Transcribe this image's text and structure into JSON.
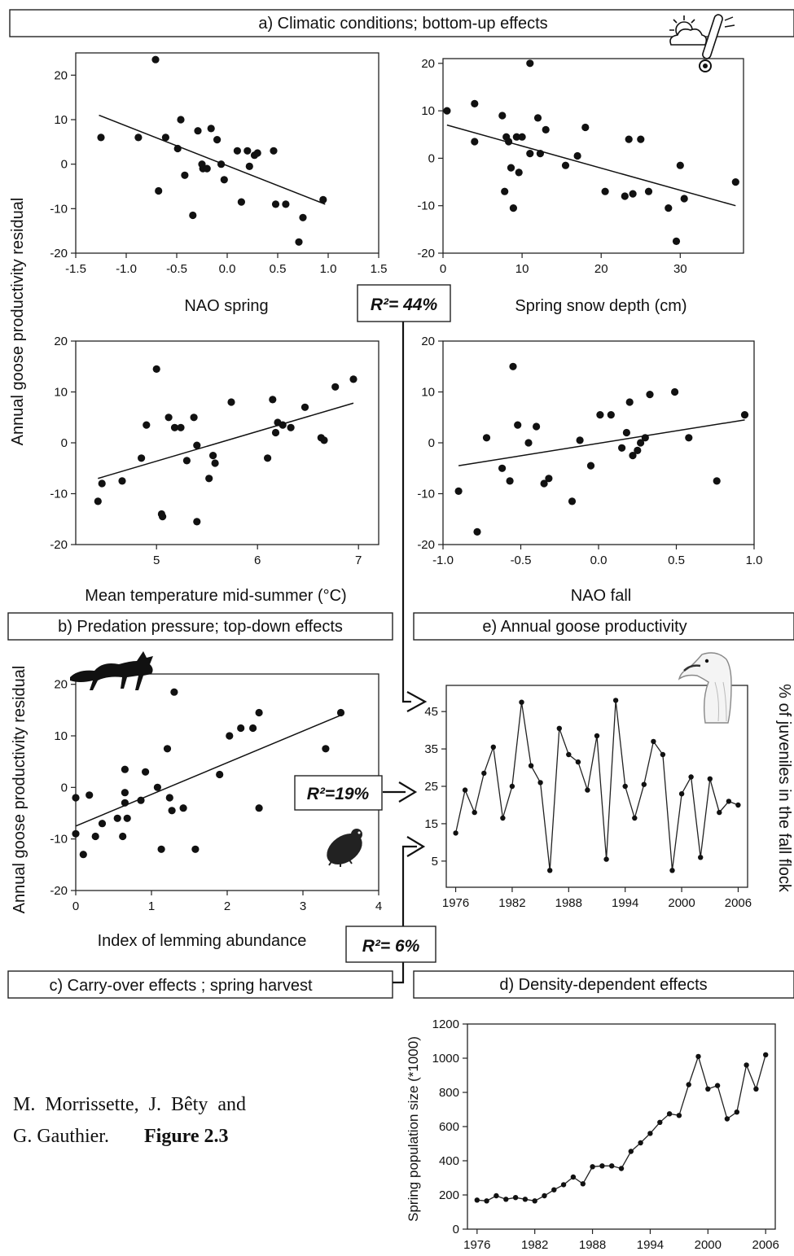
{
  "sections": {
    "a": "a) Climatic conditions; bottom-up effects",
    "b": "b) Predation pressure; top-down effects",
    "c": "c) Carry-over effects ; spring harvest",
    "d": "d) Density-dependent effects",
    "e": "e) Annual goose productivity"
  },
  "r2": {
    "climate": "R²= 44%",
    "predation": "R²=19%",
    "carryover": "R²= 6%"
  },
  "y_labels": {
    "top": "Annual goose productivity residual",
    "predation": "Annual goose productivity residual",
    "productivity": "% of juveniles in the fall flock",
    "density": "Spring population size (*1000)"
  },
  "caption": {
    "authors_line1": "M.  Morrissette,  J.  Bêty  and",
    "authors_line2": "G. Gauthier.",
    "figure": "Figure 2.3"
  },
  "icons": {
    "weather": "weather-thermometer-icon",
    "fox": "arctic-fox-icon",
    "lemming": "lemming-icon",
    "goose": "snow-goose-head-icon"
  },
  "chart_data": [
    {
      "id": "nao_spring",
      "type": "scatter",
      "xlabel": "NAO spring",
      "ylabel": "Annual goose productivity residual",
      "xlim": [
        -1.5,
        1.5
      ],
      "ylim": [
        -20,
        25
      ],
      "xticks": [
        -1.5,
        -1.0,
        -0.5,
        0.0,
        0.5,
        1.0,
        1.5
      ],
      "xticklabels": [
        "-1.5",
        "-1.0",
        "-0.5",
        "0.0",
        "0.5",
        "1.0",
        "1.5"
      ],
      "yticks": [
        -20,
        -10,
        0,
        10,
        20
      ],
      "yticklabels": [
        "-20",
        "-10",
        "0",
        "10",
        "20"
      ],
      "x": [
        -1.25,
        -0.88,
        -0.71,
        -0.68,
        -0.61,
        -0.49,
        -0.46,
        -0.42,
        -0.34,
        -0.29,
        -0.25,
        -0.24,
        -0.2,
        -0.16,
        -0.1,
        -0.06,
        -0.03,
        0.1,
        0.14,
        0.2,
        0.22,
        0.27,
        0.3,
        0.46,
        0.48,
        0.58,
        0.71,
        0.75,
        0.95
      ],
      "y": [
        6,
        6,
        23.5,
        -6,
        6,
        3.5,
        10,
        -2.5,
        -11.5,
        7.5,
        0,
        -1,
        -1,
        8,
        5.5,
        0,
        -3.5,
        3,
        -8.5,
        3,
        -0.5,
        2,
        2.5,
        3,
        -9,
        -9,
        -17.5,
        -12,
        -8
      ],
      "fit": {
        "x": [
          -1.27,
          0.97
        ],
        "y": [
          11,
          -9
        ]
      }
    },
    {
      "id": "snow_depth",
      "type": "scatter",
      "xlabel": "Spring snow depth (cm)",
      "ylabel": "",
      "xlim": [
        0,
        38
      ],
      "ylim": [
        -20,
        21
      ],
      "xticks": [
        0,
        10,
        20,
        30
      ],
      "xticklabels": [
        "0",
        "10",
        "20",
        "30"
      ],
      "yticks": [
        -20,
        -10,
        0,
        10,
        20
      ],
      "yticklabels": [
        "-20",
        "-10",
        "0",
        "10",
        "20"
      ],
      "x": [
        0.5,
        4,
        4,
        7.5,
        7.8,
        8,
        8.3,
        8.6,
        8.9,
        9.3,
        9.6,
        10,
        11,
        11,
        12,
        12.3,
        13,
        15.5,
        17,
        18,
        20.5,
        23,
        23.5,
        24,
        25,
        26,
        28.5,
        29.5,
        30,
        30.5,
        37
      ],
      "y": [
        10,
        11.5,
        3.5,
        9,
        -7,
        4.5,
        3.5,
        -2,
        -10.5,
        4.5,
        -3,
        4.5,
        20,
        1,
        8.5,
        1,
        6,
        -1.5,
        0.5,
        6.5,
        -7,
        -8,
        4,
        -7.5,
        4,
        -7,
        -10.5,
        -17.5,
        -1.5,
        -8.5,
        -5
      ],
      "fit": {
        "x": [
          0.5,
          37
        ],
        "y": [
          7,
          -10
        ]
      }
    },
    {
      "id": "temperature",
      "type": "scatter",
      "xlabel": "Mean temperature mid-summer (°C)",
      "ylabel": "",
      "xlim": [
        4.2,
        7.2
      ],
      "ylim": [
        -20,
        20
      ],
      "xticks": [
        5,
        6,
        7
      ],
      "xticklabels": [
        "5",
        "6",
        "7"
      ],
      "yticks": [
        -20,
        -10,
        0,
        10,
        20
      ],
      "yticklabels": [
        "-20",
        "-10",
        "0",
        "10",
        "20"
      ],
      "x": [
        4.42,
        4.46,
        4.66,
        4.85,
        4.9,
        5.0,
        5.05,
        5.06,
        5.12,
        5.18,
        5.24,
        5.3,
        5.37,
        5.4,
        5.4,
        5.52,
        5.56,
        5.58,
        5.74,
        6.1,
        6.15,
        6.18,
        6.2,
        6.25,
        6.33,
        6.47,
        6.63,
        6.66,
        6.77,
        6.95
      ],
      "y": [
        -11.5,
        -8,
        -7.5,
        -3,
        3.5,
        14.5,
        -14,
        -14.5,
        5,
        3,
        3,
        -3.5,
        5,
        -15.5,
        -0.5,
        -7,
        -2.5,
        -4,
        8,
        -3,
        8.5,
        2,
        4,
        3.5,
        3,
        7,
        1,
        0.5,
        11,
        12.5
      ],
      "fit": {
        "x": [
          4.42,
          6.95
        ],
        "y": [
          -7,
          7.8
        ]
      }
    },
    {
      "id": "nao_fall",
      "type": "scatter",
      "xlabel": "NAO fall",
      "ylabel": "",
      "xlim": [
        -1.0,
        1.0
      ],
      "ylim": [
        -20,
        20
      ],
      "xticks": [
        -1.0,
        -0.5,
        0.0,
        0.5,
        1.0
      ],
      "xticklabels": [
        "-1.0",
        "-0.5",
        "0.0",
        "0.5",
        "1.0"
      ],
      "yticks": [
        -20,
        -10,
        0,
        10,
        20
      ],
      "yticklabels": [
        "-20",
        "-10",
        "0",
        "10",
        "20"
      ],
      "x": [
        -0.9,
        -0.78,
        -0.72,
        -0.62,
        -0.57,
        -0.55,
        -0.52,
        -0.45,
        -0.4,
        -0.35,
        -0.32,
        -0.17,
        -0.12,
        -0.05,
        0.01,
        0.08,
        0.15,
        0.18,
        0.2,
        0.22,
        0.25,
        0.27,
        0.3,
        0.33,
        0.49,
        0.58,
        0.76,
        0.94
      ],
      "y": [
        -9.5,
        -17.5,
        1,
        -5,
        -7.5,
        15,
        3.5,
        0,
        3.2,
        -8,
        -7,
        -11.5,
        0.5,
        -4.5,
        5.5,
        5.5,
        -1,
        2,
        8,
        -2.5,
        -1.5,
        0,
        1,
        9.5,
        10,
        1,
        -7.5,
        5.5
      ],
      "fit": {
        "x": [
          -0.9,
          0.94
        ],
        "y": [
          -4.5,
          4.5
        ]
      }
    },
    {
      "id": "lemming",
      "type": "scatter",
      "xlabel": "Index of lemming abundance",
      "ylabel": "Annual goose productivity residual",
      "xlim": [
        0,
        4
      ],
      "ylim": [
        -20,
        22
      ],
      "xticks": [
        0,
        1,
        2,
        3,
        4
      ],
      "xticklabels": [
        "0",
        "1",
        "2",
        "3",
        "4"
      ],
      "yticks": [
        -20,
        -10,
        0,
        10,
        20
      ],
      "yticklabels": [
        "-20",
        "-10",
        "0",
        "10",
        "20"
      ],
      "x": [
        0.0,
        0.0,
        0.1,
        0.18,
        0.26,
        0.35,
        0.55,
        0.62,
        0.65,
        0.65,
        0.65,
        0.68,
        0.86,
        0.92,
        1.08,
        1.13,
        1.21,
        1.24,
        1.27,
        1.3,
        1.42,
        1.58,
        1.9,
        2.03,
        2.18,
        2.34,
        2.42,
        2.42,
        3.3,
        3.5
      ],
      "y": [
        -2,
        -9,
        -13,
        -1.5,
        -9.5,
        -7,
        -6,
        -9.5,
        -3,
        -1,
        3.5,
        -6,
        -2.5,
        3,
        0,
        -12,
        7.5,
        -2,
        -4.5,
        18.5,
        -4,
        -12,
        2.5,
        10,
        11.5,
        11.5,
        14.5,
        -4,
        7.5,
        14.5
      ],
      "fit": {
        "x": [
          0.0,
          3.5
        ],
        "y": [
          -7.5,
          14
        ]
      }
    },
    {
      "id": "productivity",
      "type": "line",
      "xlabel": "",
      "ylabel": "% of juveniles in the fall flock",
      "xlim": [
        1975,
        2007
      ],
      "ylim": [
        -2,
        52
      ],
      "xticks": [
        1976,
        1982,
        1988,
        1994,
        2000,
        2006
      ],
      "xticklabels": [
        "1976",
        "1982",
        "1988",
        "1994",
        "2000",
        "2006"
      ],
      "yticks": [
        5,
        15,
        25,
        35,
        45
      ],
      "yticklabels": [
        "5",
        "15",
        "25",
        "35",
        "45"
      ],
      "x": [
        1976,
        1977,
        1978,
        1979,
        1980,
        1981,
        1982,
        1983,
        1984,
        1985,
        1986,
        1987,
        1988,
        1989,
        1990,
        1991,
        1992,
        1993,
        1994,
        1995,
        1996,
        1997,
        1998,
        1999,
        2000,
        2001,
        2002,
        2003,
        2004,
        2005,
        2006
      ],
      "y": [
        12.5,
        24,
        18,
        28.5,
        35.5,
        16.5,
        25,
        47.5,
        30.5,
        26,
        2.5,
        40.5,
        33.5,
        31.5,
        24,
        38.5,
        5.5,
        48,
        25,
        16.5,
        25.5,
        37,
        33.5,
        2.5,
        23,
        27.5,
        6,
        27,
        18,
        21,
        20
      ]
    },
    {
      "id": "density",
      "type": "line",
      "xlabel": "",
      "ylabel": "Spring population size (*1000)",
      "xlim": [
        1975,
        2007
      ],
      "ylim": [
        0,
        1200
      ],
      "xticks": [
        1976,
        1982,
        1988,
        1994,
        2000,
        2006
      ],
      "xticklabels": [
        "1976",
        "1982",
        "1988",
        "1994",
        "2000",
        "2006"
      ],
      "yticks": [
        0,
        200,
        400,
        600,
        800,
        1000,
        1200
      ],
      "yticklabels": [
        "0",
        "200",
        "400",
        "600",
        "800",
        "1000",
        "1200"
      ],
      "x": [
        1976,
        1977,
        1978,
        1979,
        1980,
        1981,
        1982,
        1983,
        1984,
        1985,
        1986,
        1987,
        1988,
        1989,
        1990,
        1991,
        1992,
        1993,
        1994,
        1995,
        1996,
        1997,
        1998,
        1999,
        2000,
        2001,
        2002,
        2003,
        2004,
        2005,
        2006
      ],
      "y": [
        170,
        165,
        195,
        175,
        185,
        175,
        165,
        195,
        230,
        260,
        305,
        265,
        365,
        370,
        370,
        355,
        455,
        505,
        560,
        625,
        675,
        665,
        845,
        1010,
        820,
        840,
        645,
        685,
        960,
        820,
        1020
      ]
    }
  ]
}
